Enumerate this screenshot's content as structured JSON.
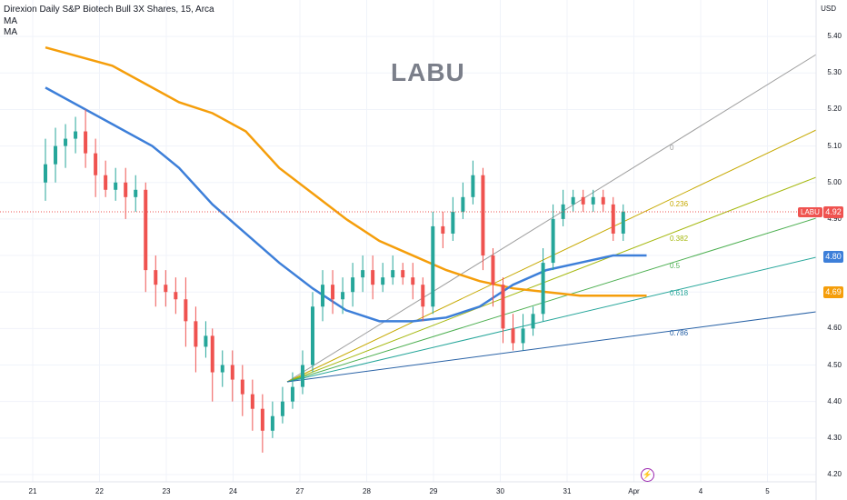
{
  "header": {
    "title": "Direxion Daily S&P Biotech Bull 3X Shares, 15, Arca",
    "ma1": "MA",
    "ma2": "MA"
  },
  "watermark": "LABU",
  "currency": "USD",
  "price_tags": {
    "last": {
      "symbol": "LABU",
      "value": "4.92",
      "color": "#ef5350"
    },
    "ma_blue": {
      "value": "4.80",
      "color": "#3d7fd9"
    },
    "ma_orange": {
      "value": "4.69",
      "color": "#f59e0b"
    }
  },
  "chart_data": {
    "type": "candlestick",
    "ylim": [
      4.18,
      5.5
    ],
    "y_ticks": [
      "5.40",
      "5.30",
      "5.20",
      "5.10",
      "5.00",
      "4.90",
      "4.80",
      "4.70",
      "4.60",
      "4.50",
      "4.40",
      "4.30",
      "4.20"
    ],
    "x_ticks": [
      "21",
      "22",
      "23",
      "24",
      "27",
      "28",
      "29",
      "30",
      "31",
      "Apr",
      "4",
      "5"
    ],
    "colors": {
      "up": "#26a69a",
      "down": "#ef5350",
      "ma_blue": "#3d7fd9",
      "ma_orange": "#f59e0b"
    },
    "ma_orange": [
      [
        0,
        5.37
      ],
      [
        1,
        5.32
      ],
      [
        1.6,
        5.26
      ],
      [
        2,
        5.22
      ],
      [
        2.5,
        5.19
      ],
      [
        3,
        5.14
      ],
      [
        3.5,
        5.04
      ],
      [
        4,
        4.97
      ],
      [
        4.5,
        4.9
      ],
      [
        5,
        4.84
      ],
      [
        5.5,
        4.8
      ],
      [
        6,
        4.76
      ],
      [
        6.5,
        4.73
      ],
      [
        7,
        4.71
      ],
      [
        7.5,
        4.7
      ],
      [
        8,
        4.69
      ],
      [
        8.5,
        4.69
      ],
      [
        9,
        4.69
      ]
    ],
    "ma_blue": [
      [
        0,
        5.26
      ],
      [
        1,
        5.16
      ],
      [
        1.6,
        5.1
      ],
      [
        2,
        5.04
      ],
      [
        2.5,
        4.94
      ],
      [
        3,
        4.86
      ],
      [
        3.5,
        4.78
      ],
      [
        4,
        4.71
      ],
      [
        4.5,
        4.65
      ],
      [
        5,
        4.62
      ],
      [
        5.5,
        4.62
      ],
      [
        6,
        4.63
      ],
      [
        6.5,
        4.66
      ],
      [
        7,
        4.72
      ],
      [
        7.5,
        4.76
      ],
      [
        8,
        4.78
      ],
      [
        8.5,
        4.8
      ],
      [
        9,
        4.8
      ]
    ],
    "candles": [
      [
        0,
        5.0,
        5.05,
        4.95,
        5.12
      ],
      [
        0.15,
        5.05,
        5.1,
        5.0,
        5.15
      ],
      [
        0.3,
        5.1,
        5.12,
        5.04,
        5.16
      ],
      [
        0.45,
        5.12,
        5.14,
        5.08,
        5.18
      ],
      [
        0.6,
        5.14,
        5.08,
        5.04,
        5.2
      ],
      [
        0.75,
        5.08,
        5.02,
        4.96,
        5.12
      ],
      [
        0.9,
        5.02,
        4.98,
        4.96,
        5.06
      ],
      [
        1.05,
        4.98,
        5.0,
        4.95,
        5.04
      ],
      [
        1.2,
        5.0,
        4.96,
        4.9,
        5.04
      ],
      [
        1.35,
        4.96,
        4.98,
        4.92,
        5.02
      ],
      [
        1.5,
        4.98,
        4.76,
        4.7,
        5.0
      ],
      [
        1.65,
        4.76,
        4.72,
        4.66,
        4.8
      ],
      [
        1.8,
        4.72,
        4.7,
        4.66,
        4.76
      ],
      [
        1.95,
        4.7,
        4.68,
        4.64,
        4.74
      ],
      [
        2.1,
        4.68,
        4.62,
        4.55,
        4.74
      ],
      [
        2.25,
        4.62,
        4.55,
        4.48,
        4.66
      ],
      [
        2.4,
        4.55,
        4.58,
        4.52,
        4.62
      ],
      [
        2.5,
        4.58,
        4.48,
        4.4,
        4.6
      ],
      [
        2.65,
        4.48,
        4.5,
        4.44,
        4.54
      ],
      [
        2.8,
        4.5,
        4.46,
        4.4,
        4.54
      ],
      [
        2.95,
        4.46,
        4.42,
        4.36,
        4.5
      ],
      [
        3.1,
        4.42,
        4.38,
        4.32,
        4.46
      ],
      [
        3.25,
        4.38,
        4.32,
        4.26,
        4.42
      ],
      [
        3.4,
        4.32,
        4.36,
        4.3,
        4.4
      ],
      [
        3.55,
        4.36,
        4.4,
        4.34,
        4.44
      ],
      [
        3.7,
        4.4,
        4.44,
        4.38,
        4.48
      ],
      [
        3.85,
        4.44,
        4.5,
        4.42,
        4.54
      ],
      [
        4.0,
        4.5,
        4.66,
        4.48,
        4.7
      ],
      [
        4.15,
        4.66,
        4.72,
        4.62,
        4.76
      ],
      [
        4.3,
        4.72,
        4.68,
        4.64,
        4.76
      ],
      [
        4.45,
        4.68,
        4.7,
        4.64,
        4.74
      ],
      [
        4.6,
        4.7,
        4.74,
        4.66,
        4.78
      ],
      [
        4.75,
        4.74,
        4.76,
        4.7,
        4.8
      ],
      [
        4.9,
        4.76,
        4.72,
        4.68,
        4.8
      ],
      [
        5.05,
        4.72,
        4.74,
        4.7,
        4.78
      ],
      [
        5.2,
        4.74,
        4.76,
        4.72,
        4.8
      ],
      [
        5.35,
        4.76,
        4.74,
        4.72,
        4.78
      ],
      [
        5.5,
        4.74,
        4.72,
        4.68,
        4.78
      ],
      [
        5.65,
        4.72,
        4.66,
        4.62,
        4.74
      ],
      [
        5.8,
        4.66,
        4.88,
        4.64,
        4.92
      ],
      [
        5.95,
        4.88,
        4.86,
        4.82,
        4.92
      ],
      [
        6.1,
        4.86,
        4.92,
        4.84,
        4.96
      ],
      [
        6.25,
        4.92,
        4.96,
        4.9,
        5.0
      ],
      [
        6.4,
        4.96,
        5.02,
        4.94,
        5.06
      ],
      [
        6.55,
        5.02,
        4.8,
        4.76,
        5.04
      ],
      [
        6.7,
        4.8,
        4.72,
        4.66,
        4.82
      ],
      [
        6.85,
        4.72,
        4.6,
        4.56,
        4.74
      ],
      [
        7.0,
        4.6,
        4.56,
        4.54,
        4.64
      ],
      [
        7.15,
        4.56,
        4.6,
        4.54,
        4.64
      ],
      [
        7.3,
        4.6,
        4.64,
        4.58,
        4.66
      ],
      [
        7.45,
        4.64,
        4.78,
        4.62,
        4.82
      ],
      [
        7.6,
        4.78,
        4.9,
        4.76,
        4.94
      ],
      [
        7.75,
        4.9,
        4.94,
        4.88,
        4.98
      ],
      [
        7.9,
        4.94,
        4.96,
        4.92,
        4.98
      ],
      [
        8.05,
        4.96,
        4.94,
        4.92,
        4.98
      ],
      [
        8.2,
        4.94,
        4.96,
        4.92,
        4.98
      ],
      [
        8.35,
        4.96,
        4.94,
        4.92,
        4.98
      ],
      [
        8.5,
        4.94,
        4.86,
        4.84,
        4.96
      ],
      [
        8.65,
        4.86,
        4.92,
        4.84,
        4.94
      ]
    ],
    "fib_levels": [
      "0",
      "0.236",
      "0.382",
      "0.5",
      "0.618",
      "0.786"
    ],
    "fib_colors": [
      "#9e9e9e",
      "#c6a900",
      "#a5b80e",
      "#4caf50",
      "#26a69a",
      "#2962a6"
    ]
  }
}
